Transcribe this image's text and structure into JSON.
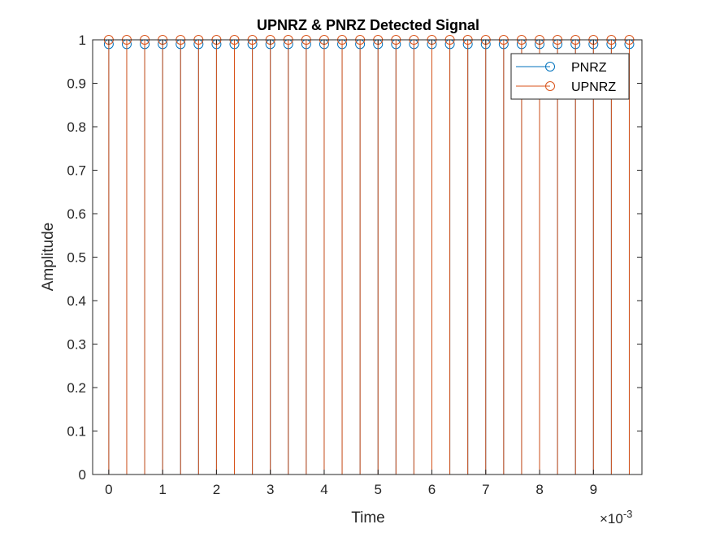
{
  "chart_data": {
    "type": "stem",
    "title": "UPNRZ & PNRZ Detected Signal",
    "xlabel": "Time",
    "ylabel": "Amplitude",
    "x_exponent_base": "×10",
    "x_exponent_power": "-3",
    "xlim": [
      -0.0003,
      0.0099
    ],
    "ylim": [
      0,
      1
    ],
    "xticks": [
      0,
      1,
      2,
      3,
      4,
      5,
      6,
      7,
      8,
      9
    ],
    "yticks": [
      "0",
      "0.1",
      "0.2",
      "0.3",
      "0.4",
      "0.5",
      "0.6",
      "0.7",
      "0.8",
      "0.9",
      "1"
    ],
    "x_start": 0,
    "x_step": 0.0003333,
    "num_points": 30,
    "legend_position": "top-right",
    "grid": false,
    "series": [
      {
        "name": "PNRZ",
        "color": "#0072BD",
        "marker": "circle",
        "value": 0.99
      },
      {
        "name": "UPNRZ",
        "color": "#D95319",
        "marker": "circle",
        "value": 1.0
      }
    ]
  }
}
